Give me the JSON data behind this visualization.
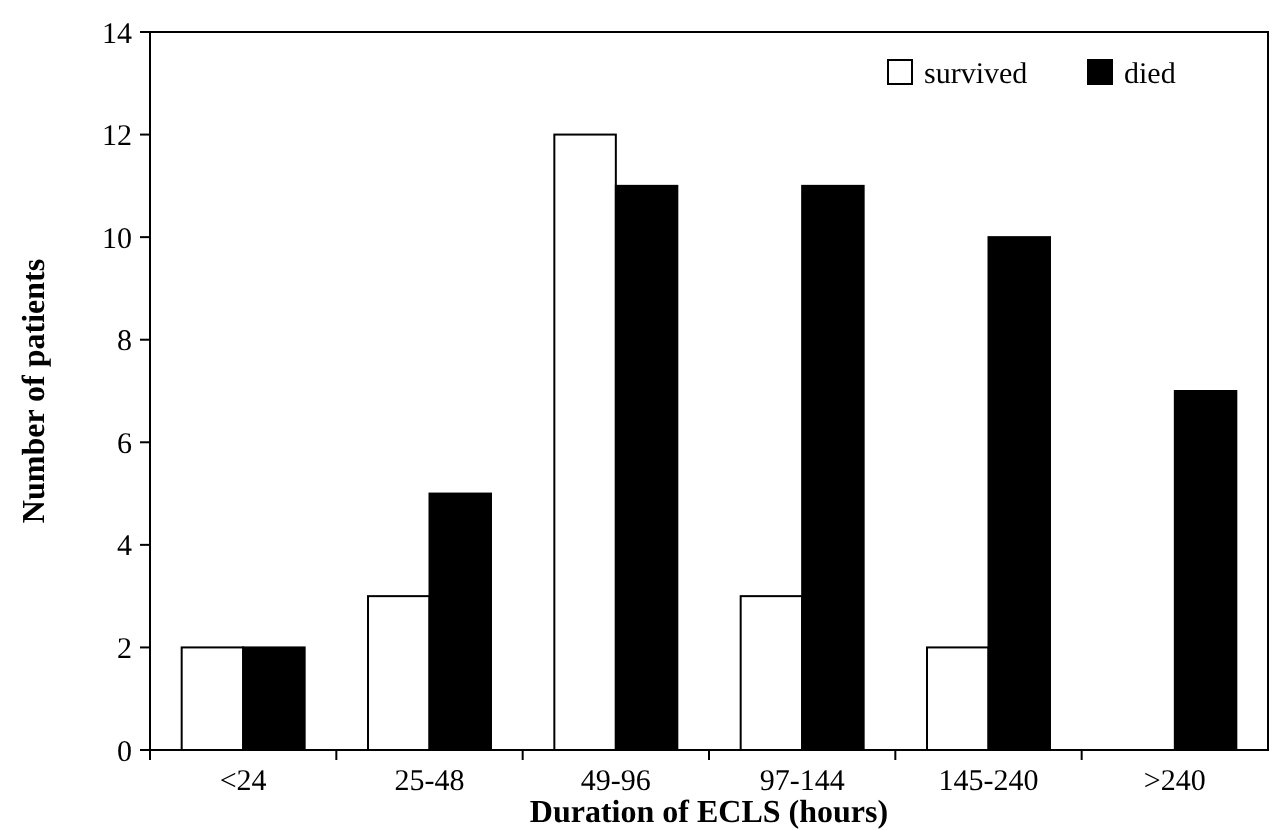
{
  "chart_data": {
    "type": "bar",
    "xlabel": "Duration of ECLS (hours)",
    "ylabel": "Number of patients",
    "categories": [
      "<24",
      "25-48",
      "49-96",
      "97-144",
      "145-240",
      ">240"
    ],
    "series": [
      {
        "name": "survived",
        "color": "#ffffff",
        "values": [
          2,
          3,
          12,
          3,
          2,
          0
        ]
      },
      {
        "name": "died",
        "color": "#000000",
        "values": [
          2,
          5,
          11,
          11,
          10,
          7
        ]
      }
    ],
    "ylim": [
      0,
      14
    ],
    "yticks": [
      0,
      2,
      4,
      6,
      8,
      10,
      12,
      14
    ],
    "grid": false,
    "legend": "top right"
  }
}
